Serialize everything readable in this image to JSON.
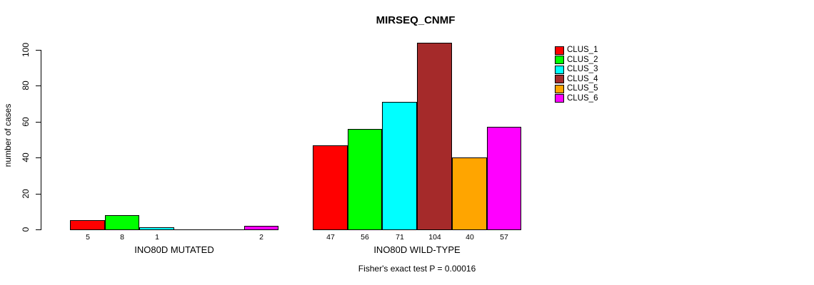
{
  "chart_data": {
    "type": "bar",
    "title": "MIRSEQ_CNMF",
    "ylabel": "number of cases",
    "xlabel": "",
    "ylim": [
      0,
      104
    ],
    "yticks": [
      0,
      20,
      40,
      60,
      80,
      100
    ],
    "grid": false,
    "legend_position": "right",
    "groups": [
      "INO80D MUTATED",
      "INO80D WILD-TYPE"
    ],
    "series": [
      {
        "name": "CLUS_1",
        "color": "#FF0000",
        "values": [
          5,
          47
        ]
      },
      {
        "name": "CLUS_2",
        "color": "#00FF00",
        "values": [
          8,
          56
        ]
      },
      {
        "name": "CLUS_3",
        "color": "#00FFFF",
        "values": [
          1,
          71
        ]
      },
      {
        "name": "CLUS_4",
        "color": "#A52A2A",
        "values": [
          0,
          104
        ]
      },
      {
        "name": "CLUS_5",
        "color": "#FFA500",
        "values": [
          0,
          40
        ]
      },
      {
        "name": "CLUS_6",
        "color": "#FF00FF",
        "values": [
          2,
          57
        ]
      }
    ],
    "bar_value_labels": [
      [
        "5",
        "8",
        "1",
        "",
        "",
        "2"
      ],
      [
        "47",
        "56",
        "71",
        "104",
        "40",
        "57"
      ]
    ],
    "caption": "Fisher's exact test P = 0.00016"
  }
}
